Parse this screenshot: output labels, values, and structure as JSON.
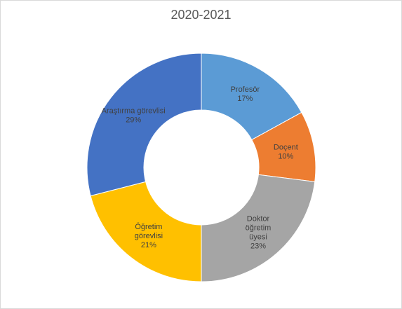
{
  "chart_data": {
    "type": "pie",
    "variant": "doughnut",
    "title": "2020-2021",
    "slices": [
      {
        "name": "Profesör",
        "value": 17,
        "label_lines": [
          "Profesör",
          "17%"
        ],
        "color": "#5b9bd5"
      },
      {
        "name": "Doçent",
        "value": 10,
        "label_lines": [
          "Doçent",
          "10%"
        ],
        "color": "#ed7d31"
      },
      {
        "name": "Doktor öğretim üyesi",
        "value": 23,
        "label_lines": [
          "Doktor",
          "öğretim",
          "üyesi",
          "23%"
        ],
        "color": "#a5a5a5"
      },
      {
        "name": "Öğretim görevlisi",
        "value": 21,
        "label_lines": [
          "Öğretim",
          "görevlisi",
          "21%"
        ],
        "color": "#ffc000"
      },
      {
        "name": "Araştırma görevlisi",
        "value": 29,
        "label_lines": [
          "Araştırma görevlisi",
          "29%"
        ],
        "color": "#4472c4"
      }
    ],
    "legend": "none"
  }
}
